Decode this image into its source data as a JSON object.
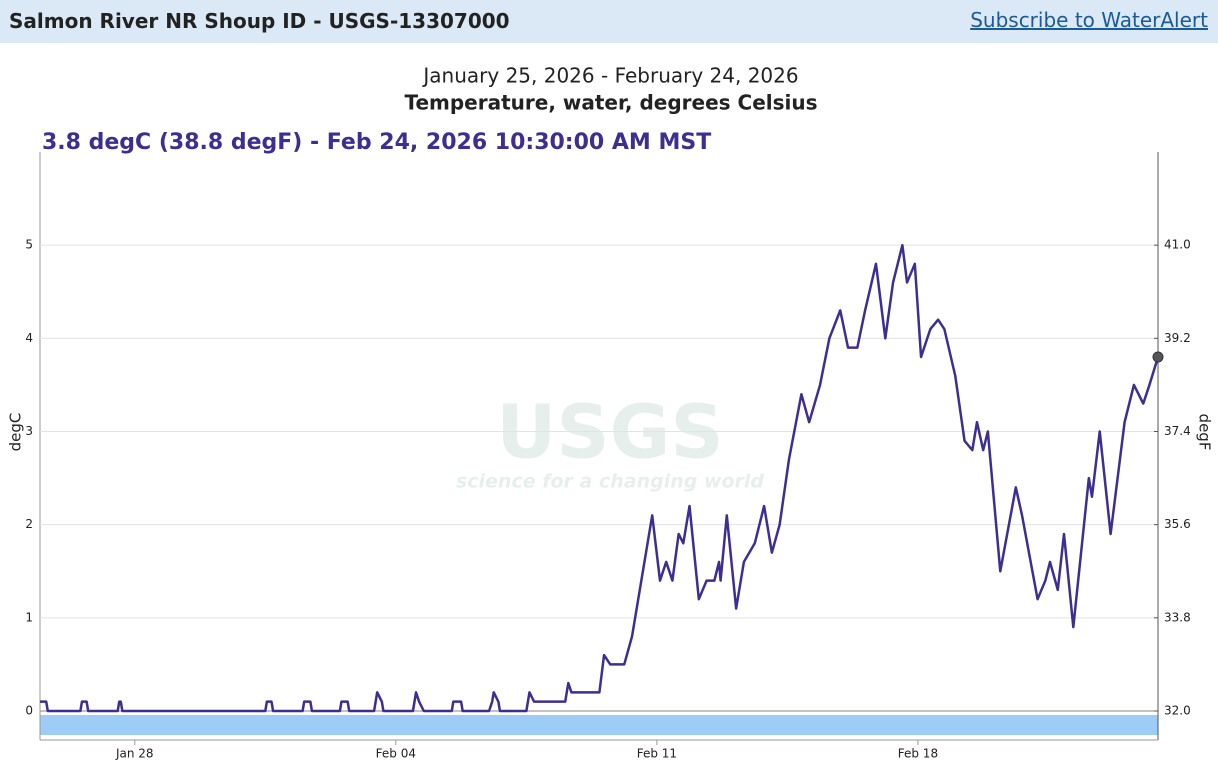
{
  "header": {
    "title": "Salmon River NR Shoup ID - USGS-13307000",
    "link": "Subscribe to WaterAlert"
  },
  "chart_data": {
    "type": "line",
    "subtitle": "January 25, 2026 - February 24, 2026",
    "title": "Temperature, water, degrees Celsius",
    "annotation": "3.8 degC (38.8 degF) - Feb 24, 2026 10:30:00 AM MST",
    "watermark": {
      "logo": "USGS",
      "tagline": "science for a changing world"
    },
    "y_label": "degC",
    "y2_label": "degF",
    "color": "#3d2e91",
    "grid": true,
    "ylim": [
      0,
      6
    ],
    "yticks": [
      0,
      1,
      2,
      3,
      4,
      5
    ],
    "y2lim": [
      32,
      42.8
    ],
    "y2ticks": [
      {
        "value": 32,
        "label": "32.0"
      },
      33.8,
      35.6,
      37.4,
      39.2,
      {
        "value": 41,
        "label": "41.0"
      }
    ],
    "xlim": [
      "2026-01-25T11:00",
      "2026-02-24T10:30"
    ],
    "xticks": [
      {
        "value": "2026-01-28T00:00",
        "label": "Jan 28"
      },
      {
        "value": "2026-02-04T00:00",
        "label": "Feb 04"
      },
      {
        "value": "2026-02-11T00:00",
        "label": "Feb 11"
      },
      {
        "value": "2026-02-18T00:00",
        "label": "Feb 18"
      }
    ],
    "x": [
      "2026-01-25T11:00",
      "2026-01-25T15:00",
      "2026-01-25T16:00",
      "2026-01-26T13:00",
      "2026-01-26T14:00",
      "2026-01-26T17:00",
      "2026-01-26T18:00",
      "2026-01-27T13:00",
      "2026-01-27T14:00",
      "2026-01-27T15:00",
      "2026-01-27T16:00",
      "2026-01-31T12:00",
      "2026-01-31T13:00",
      "2026-01-31T16:00",
      "2026-01-31T17:00",
      "2026-02-01T12:00",
      "2026-02-01T13:00",
      "2026-02-01T17:00",
      "2026-02-01T18:00",
      "2026-02-02T12:00",
      "2026-02-02T13:00",
      "2026-02-02T17:00",
      "2026-02-02T18:00",
      "2026-02-03T10:00",
      "2026-02-03T11:00",
      "2026-02-03T12:00",
      "2026-02-03T15:00",
      "2026-02-03T16:00",
      "2026-02-04T11:00",
      "2026-02-04T13:00",
      "2026-02-04T15:00",
      "2026-02-04T18:00",
      "2026-02-05T12:00",
      "2026-02-05T13:00",
      "2026-02-05T18:00",
      "2026-02-05T19:00",
      "2026-02-06T12:00",
      "2026-02-06T14:00",
      "2026-02-06T15:00",
      "2026-02-06T18:00",
      "2026-02-06T19:00",
      "2026-02-07T12:00",
      "2026-02-07T14:00",
      "2026-02-07T17:00",
      "2026-02-08T13:00",
      "2026-02-08T15:00",
      "2026-02-08T17:00",
      "2026-02-09T11:00",
      "2026-02-09T14:00",
      "2026-02-09T18:00",
      "2026-02-10T03:00",
      "2026-02-10T08:00",
      "2026-02-10T14:00",
      "2026-02-10T21:00",
      "2026-02-11T02:00",
      "2026-02-11T06:00",
      "2026-02-11T10:00",
      "2026-02-11T14:00",
      "2026-02-11T17:00",
      "2026-02-11T21:00",
      "2026-02-12T03:00",
      "2026-02-12T08:00",
      "2026-02-12T13:00",
      "2026-02-12T16:00",
      "2026-02-12T17:00",
      "2026-02-12T21:00",
      "2026-02-13T03:00",
      "2026-02-13T08:00",
      "2026-02-13T15:00",
      "2026-02-13T21:00",
      "2026-02-14T02:00",
      "2026-02-14T07:00",
      "2026-02-14T13:00",
      "2026-02-14T21:00",
      "2026-02-15T02:00",
      "2026-02-15T09:00",
      "2026-02-15T15:00",
      "2026-02-15T22:00",
      "2026-02-16T03:00",
      "2026-02-16T09:00",
      "2026-02-16T14:00",
      "2026-02-16T21:00",
      "2026-02-17T03:00",
      "2026-02-17T08:00",
      "2026-02-17T14:00",
      "2026-02-17T17:00",
      "2026-02-17T22:00",
      "2026-02-18T02:00",
      "2026-02-18T08:00",
      "2026-02-18T13:00",
      "2026-02-18T17:00",
      "2026-02-19T00:00",
      "2026-02-19T06:00",
      "2026-02-19T11:00",
      "2026-02-19T14:00",
      "2026-02-19T18:00",
      "2026-02-19T21:00",
      "2026-02-20T05:00",
      "2026-02-20T15:00",
      "2026-02-20T19:00",
      "2026-02-21T05:00",
      "2026-02-21T10:00",
      "2026-02-21T13:00",
      "2026-02-21T18:00",
      "2026-02-21T22:00",
      "2026-02-22T04:00",
      "2026-02-22T14:00",
      "2026-02-22T16:00",
      "2026-02-22T21:00",
      "2026-02-23T04:00",
      "2026-02-23T13:00",
      "2026-02-23T19:00",
      "2026-02-24T01:00",
      "2026-02-24T05:00",
      "2026-02-24T10:30"
    ],
    "values": [
      0.1,
      0.1,
      0,
      0,
      0.1,
      0.1,
      0,
      0,
      0.1,
      0.1,
      0,
      0,
      0.1,
      0.1,
      0,
      0,
      0.1,
      0.1,
      0,
      0,
      0.1,
      0.1,
      0,
      0,
      0.1,
      0.2,
      0.1,
      0,
      0,
      0.2,
      0.1,
      0,
      0,
      0.1,
      0.1,
      0,
      0,
      0.1,
      0.2,
      0.1,
      0,
      0,
      0.2,
      0.1,
      0.1,
      0.3,
      0.2,
      0.2,
      0.6,
      0.5,
      0.5,
      0.8,
      1.4,
      2.1,
      1.4,
      1.6,
      1.4,
      1.9,
      1.8,
      2.2,
      1.2,
      1.4,
      1.4,
      1.6,
      1.4,
      2.1,
      1.1,
      1.6,
      1.8,
      2.2,
      1.7,
      2.0,
      2.7,
      3.4,
      3.1,
      3.5,
      4.0,
      4.3,
      3.9,
      3.9,
      4.3,
      4.8,
      4.0,
      4.6,
      5.0,
      4.6,
      4.8,
      3.8,
      4.1,
      4.2,
      4.1,
      3.6,
      2.9,
      2.8,
      3.1,
      2.8,
      3.0,
      1.5,
      2.4,
      2.1,
      1.2,
      1.4,
      1.6,
      1.3,
      1.9,
      0.9,
      2.5,
      2.3,
      3.0,
      1.9,
      3.1,
      3.5,
      3.3,
      3.5,
      3.8
    ]
  }
}
